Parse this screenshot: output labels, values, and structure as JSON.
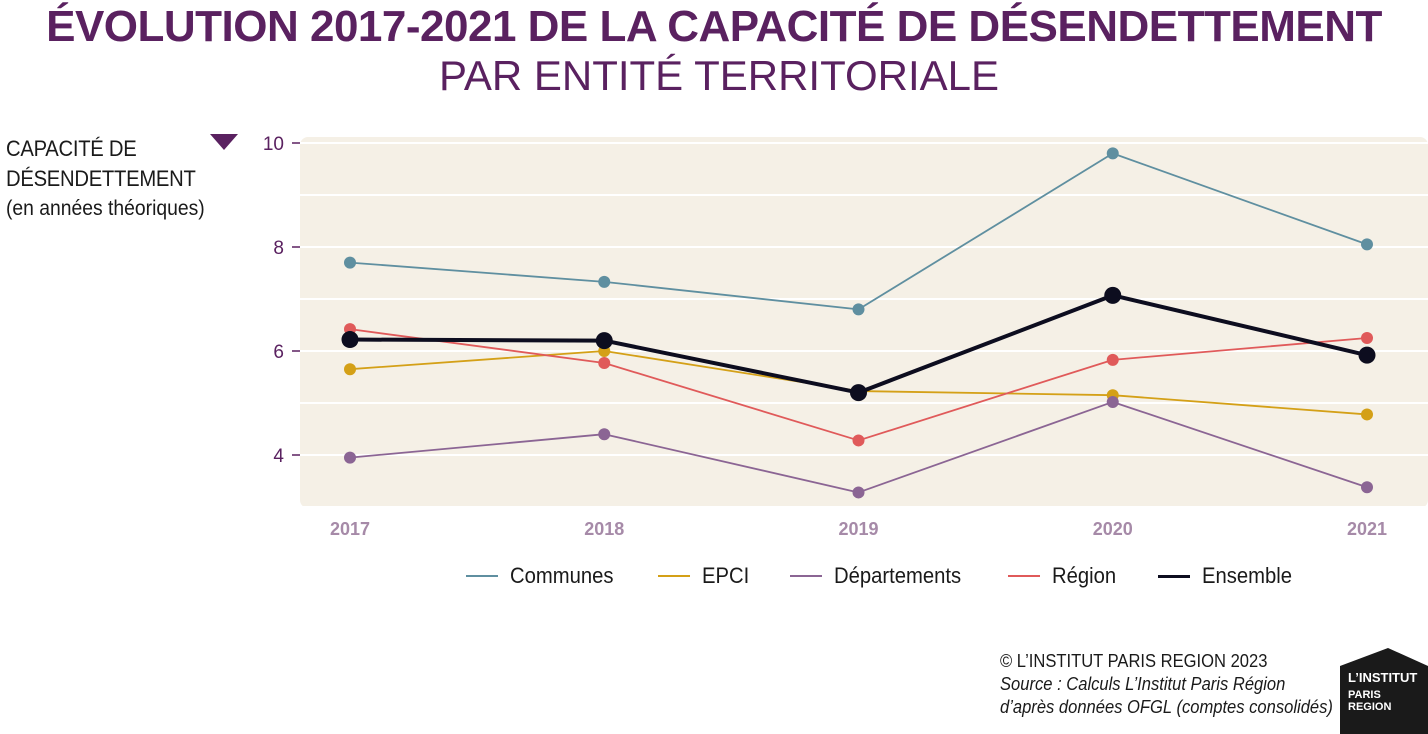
{
  "header": {
    "title": "ÉVOLUTION 2017-2021 DE LA CAPACITÉ DE DÉSENDETTEMENT",
    "subtitle": "PAR ENTITÉ TERRITORIALE"
  },
  "yaxis_label": {
    "line1": "CAPACITÉ DE",
    "line2": "DÉSENDETTEMENT",
    "line3": "(en années théoriques)"
  },
  "footer": {
    "copyright": "© L’INSTITUT PARIS REGION 2023",
    "source_line1": "Source : Calculs L’Institut Paris Région",
    "source_line2": "d’après données OFGL (comptes consolidés)"
  },
  "logo": {
    "line1": "L’INSTITUT",
    "line2": "PARIS",
    "line3": "REGION"
  },
  "colors": {
    "title": "#5a2160",
    "plot_background": "#f5f0e6",
    "tick_y": "#5a2160",
    "tick_x": "#a68aa8"
  },
  "chart_data": {
    "type": "line",
    "title": "ÉVOLUTION 2017-2021 DE LA CAPACITÉ DE DÉSENDETTEMENT",
    "subtitle": "PAR ENTITÉ TERRITORIALE",
    "xlabel": "",
    "ylabel": "CAPACITÉ DE DÉSENDETTEMENT (en années théoriques)",
    "categories": [
      "2017",
      "2018",
      "2019",
      "2020",
      "2021"
    ],
    "ylim": [
      3,
      10
    ],
    "yticks": [
      4,
      6,
      8,
      10
    ],
    "grid": true,
    "legend_position": "bottom",
    "series": [
      {
        "name": "Communes",
        "color": "#5f8fa0",
        "values": [
          7.7,
          7.33,
          6.8,
          9.8,
          8.05
        ]
      },
      {
        "name": "EPCI",
        "color": "#d4a017",
        "values": [
          5.65,
          6.0,
          5.23,
          5.15,
          4.78
        ]
      },
      {
        "name": "Départements",
        "color": "#8b6594",
        "values": [
          3.95,
          4.4,
          3.28,
          5.02,
          3.38
        ]
      },
      {
        "name": "Région",
        "color": "#e05a5a",
        "values": [
          6.42,
          5.77,
          4.28,
          5.83,
          6.25
        ]
      },
      {
        "name": "Ensemble",
        "color": "#0d0d1f",
        "values": [
          6.22,
          6.2,
          5.2,
          7.07,
          5.92
        ]
      }
    ]
  }
}
